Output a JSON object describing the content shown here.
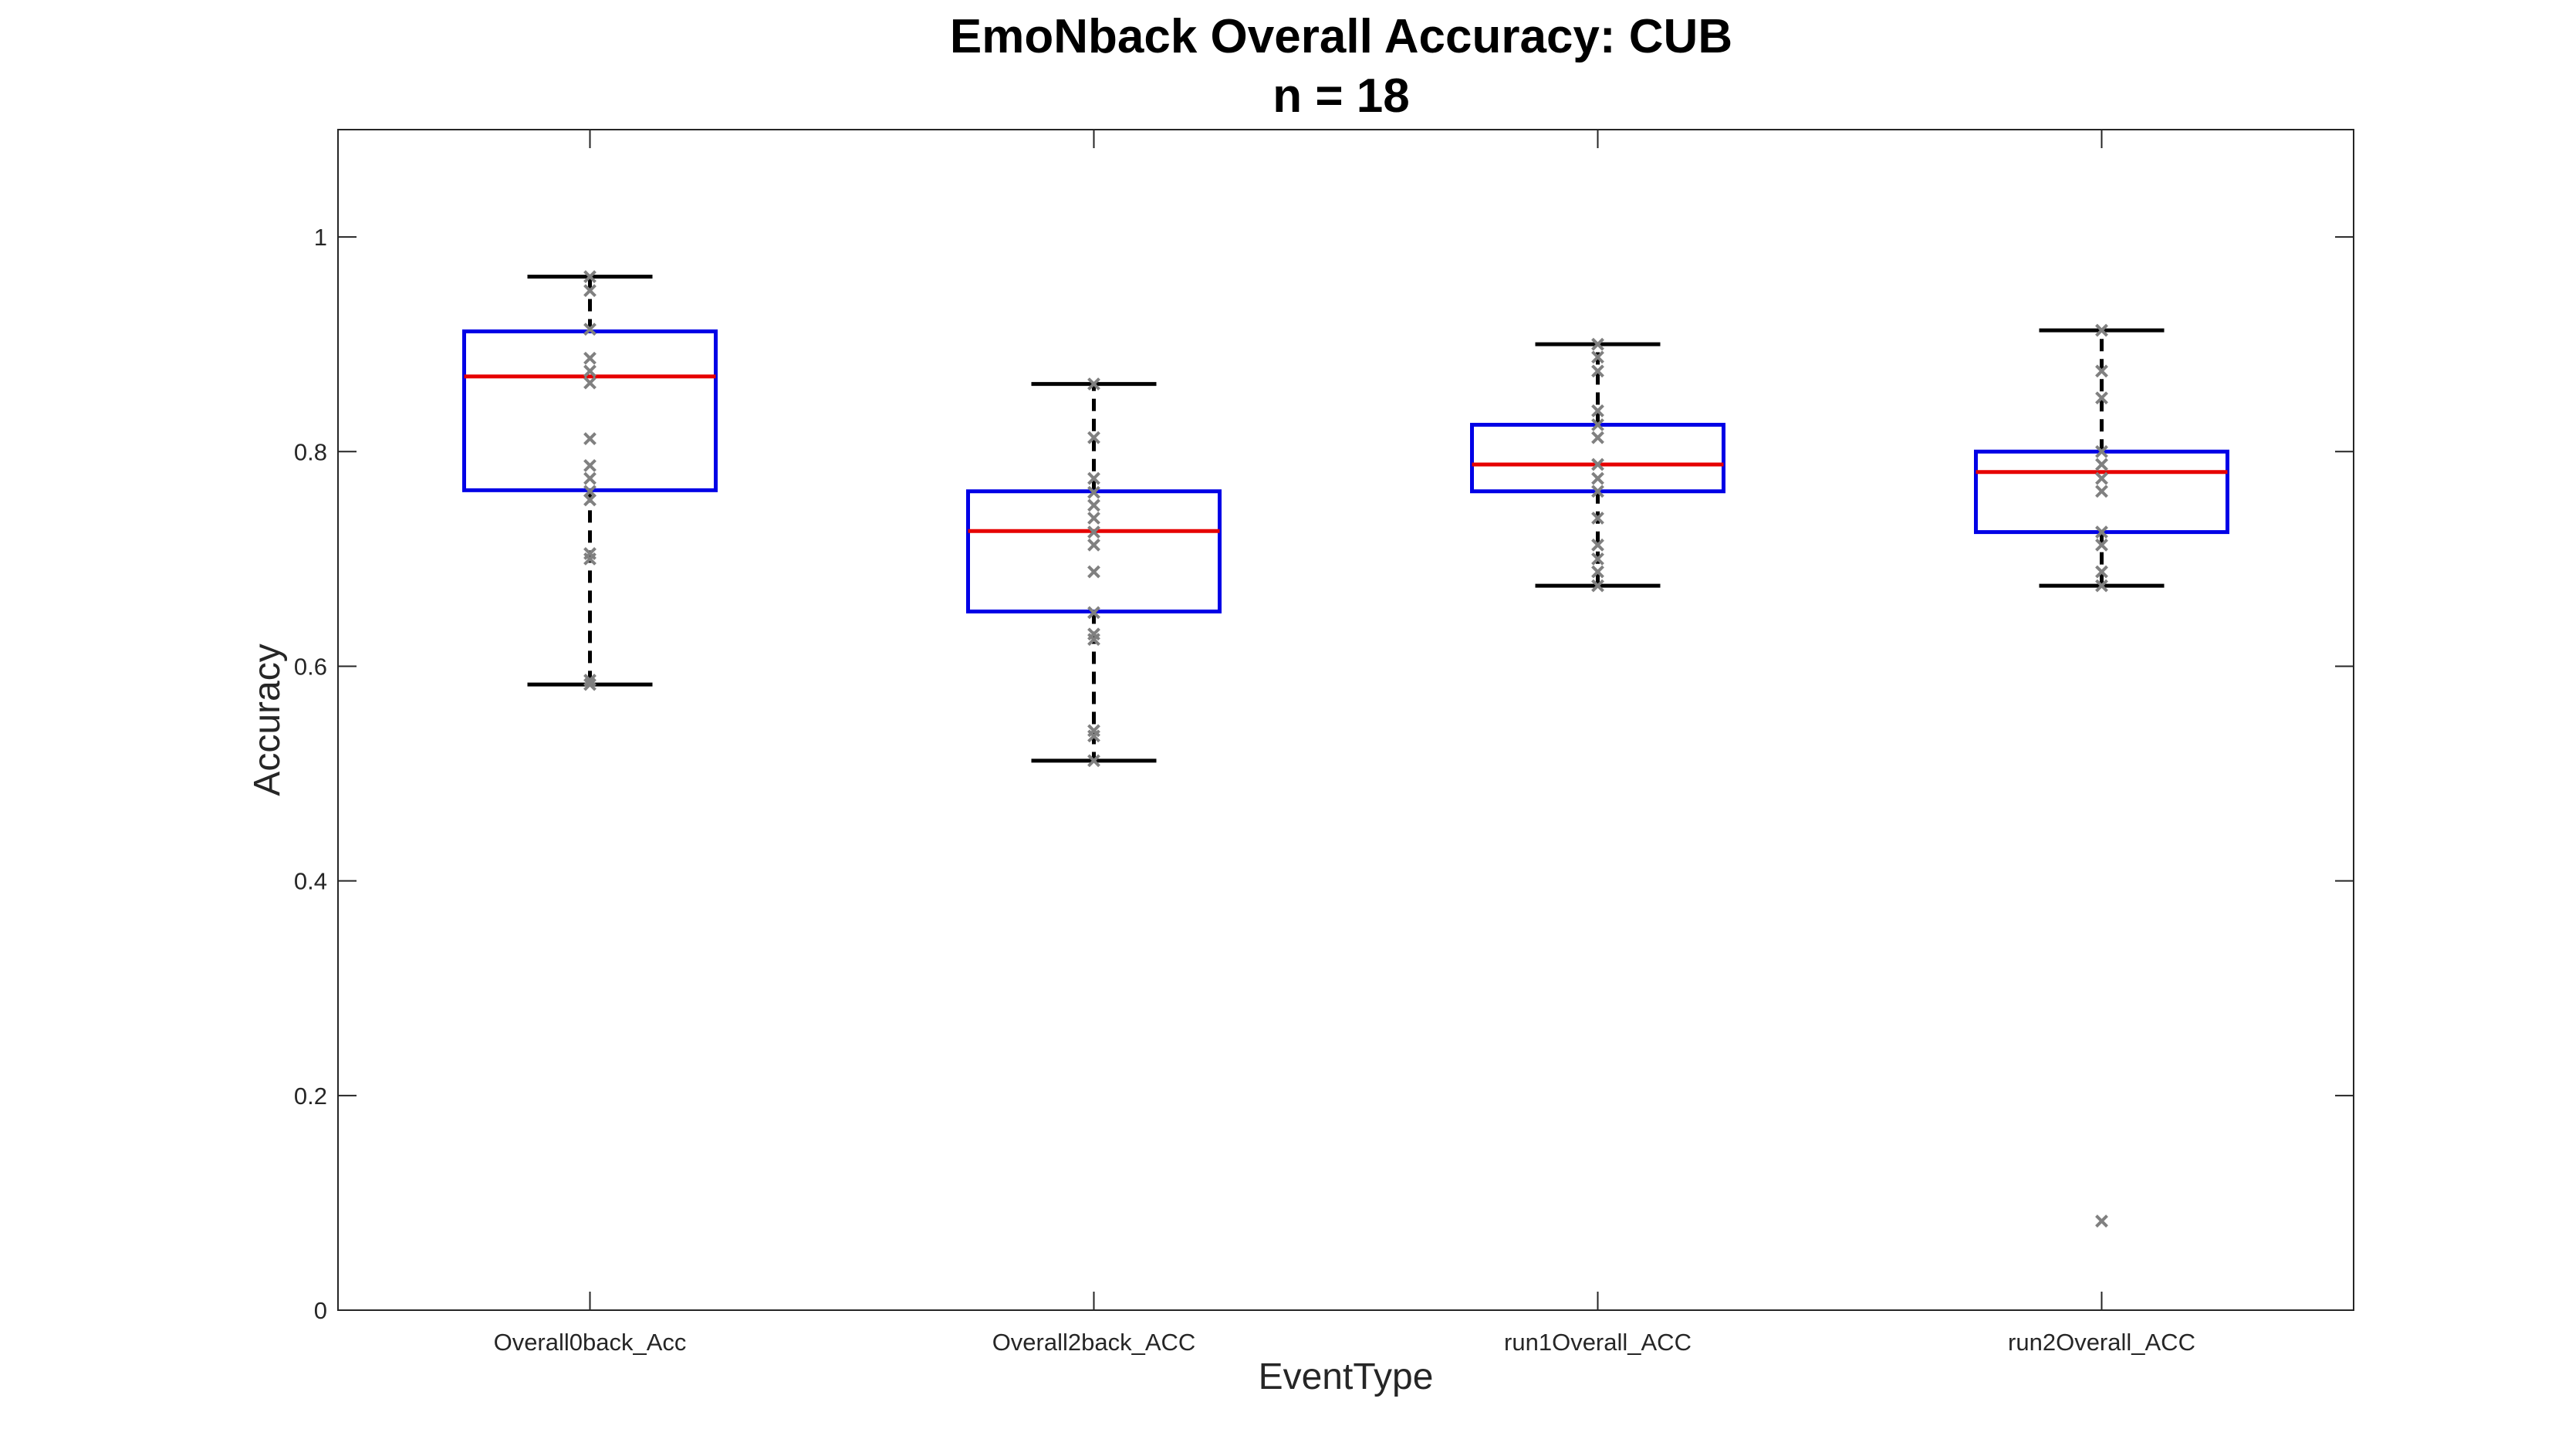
{
  "chart_data": {
    "type": "box",
    "title": "EmoNback Overall Accuracy: CUB",
    "subtitle": "n = 18",
    "xlabel": "EventType",
    "ylabel": "Accuracy",
    "ylim": [
      0,
      1.1
    ],
    "yticks": [
      0,
      0.2,
      0.4,
      0.6,
      0.8,
      1
    ],
    "ytick_labels": [
      "0",
      "0.2",
      "0.4",
      "0.6",
      "0.8",
      "1"
    ],
    "grid": false,
    "categories": [
      "Overall0back_Acc",
      "Overall2back_ACC",
      "run1Overall_ACC",
      "run2Overall_ACC"
    ],
    "colors": {
      "box": "#0000e6",
      "median": "#e60000",
      "whisker": "#000000",
      "points": "#808080",
      "axes": "#262626"
    },
    "boxes": [
      {
        "category": "Overall0back_Acc",
        "whisker_low": 0.583,
        "q1": 0.764,
        "median": 0.87,
        "q3": 0.912,
        "whisker_high": 0.963,
        "points": [
          0.963,
          0.95,
          0.914,
          0.887,
          0.875,
          0.864,
          0.812,
          0.787,
          0.775,
          0.763,
          0.755,
          0.705,
          0.7,
          0.587,
          0.583
        ]
      },
      {
        "category": "Overall2back_ACC",
        "whisker_low": 0.512,
        "q1": 0.651,
        "median": 0.726,
        "q3": 0.763,
        "whisker_high": 0.863,
        "points": [
          0.863,
          0.813,
          0.775,
          0.762,
          0.75,
          0.738,
          0.725,
          0.713,
          0.688,
          0.65,
          0.63,
          0.625,
          0.54,
          0.535,
          0.512
        ]
      },
      {
        "category": "run1Overall_ACC",
        "whisker_low": 0.675,
        "q1": 0.763,
        "median": 0.788,
        "q3": 0.825,
        "whisker_high": 0.9,
        "points": [
          0.9,
          0.888,
          0.875,
          0.838,
          0.825,
          0.813,
          0.788,
          0.775,
          0.763,
          0.738,
          0.713,
          0.7,
          0.688,
          0.675
        ]
      },
      {
        "category": "run2Overall_ACC",
        "whisker_low": 0.675,
        "q1": 0.725,
        "median": 0.781,
        "q3": 0.8,
        "whisker_high": 0.913,
        "points": [
          0.913,
          0.875,
          0.85,
          0.8,
          0.788,
          0.775,
          0.763,
          0.725,
          0.713,
          0.688,
          0.675,
          0.083
        ]
      }
    ]
  }
}
